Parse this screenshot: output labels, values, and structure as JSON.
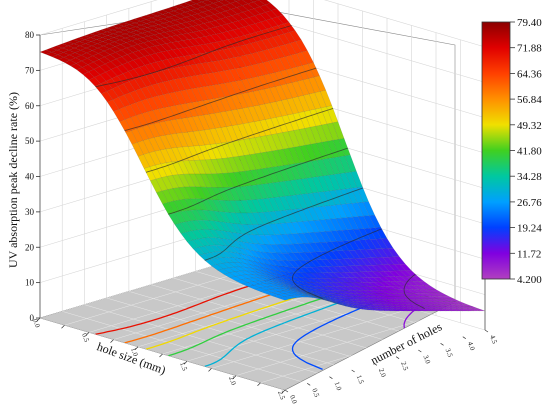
{
  "chart_data": {
    "type": "surface",
    "title": "",
    "xlabel": "hole size (mm)",
    "ylabel": "number of holes",
    "zlabel": "UV absorption peak decline rate (%)",
    "x_ticks": [
      "0.0",
      "0.5",
      "1.0",
      "1.5",
      "2.0",
      "2.5"
    ],
    "y_ticks": [
      "4.5",
      "4.0",
      "3.5",
      "3.0",
      "2.5",
      "2.0",
      "1.5",
      "1.0",
      "0.5",
      "0.0"
    ],
    "z_ticks": [
      "0",
      "10",
      "20",
      "30",
      "40",
      "50",
      "60",
      "70",
      "80"
    ],
    "xlim": [
      0,
      2.5
    ],
    "ylim": [
      0,
      4.5
    ],
    "zlim": [
      0,
      80
    ],
    "grid": true,
    "colorbar": {
      "position": "right",
      "labels": [
        "79.40",
        "71.88",
        "64.36",
        "56.84",
        "49.32",
        "41.80",
        "34.28",
        "26.76",
        "19.24",
        "11.72",
        "4.200"
      ],
      "min": 4.2,
      "max": 79.4,
      "colors": [
        "#8b0000",
        "#e00000",
        "#ff4000",
        "#ff9000",
        "#f0e000",
        "#40d020",
        "#00c8a0",
        "#00a0ff",
        "#0040ff",
        "#8000e0",
        "#b040c0"
      ]
    },
    "surface_samples": [
      {
        "x": 0.0,
        "y": 0.0,
        "z": 76
      },
      {
        "x": 0.0,
        "y": 4.5,
        "z": 79
      },
      {
        "x": 2.5,
        "y": 0.0,
        "z": 22
      },
      {
        "x": 2.5,
        "y": 4.5,
        "z": 5
      }
    ]
  }
}
